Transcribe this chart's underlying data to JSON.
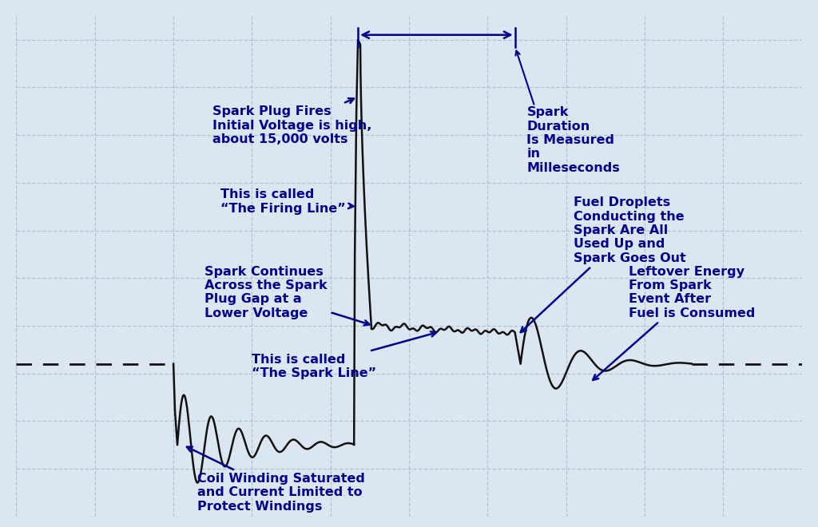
{
  "background_color": "#dce6f0",
  "grid_color": "#aabfd4",
  "line_color": "#111111",
  "text_color": "#00008B",
  "annotation_color": "#00008B",
  "fig_width": 10.24,
  "fig_height": 6.6,
  "dpi": 100,
  "xlim": [
    0,
    10
  ],
  "ylim": [
    -5.0,
    5.5
  ],
  "grid_xticks": [
    0,
    1,
    2,
    3,
    4,
    5,
    6,
    7,
    8,
    9,
    10
  ],
  "grid_yticks": [
    -5,
    -4,
    -3,
    -2,
    -1,
    0,
    1,
    2,
    3,
    4,
    5
  ]
}
